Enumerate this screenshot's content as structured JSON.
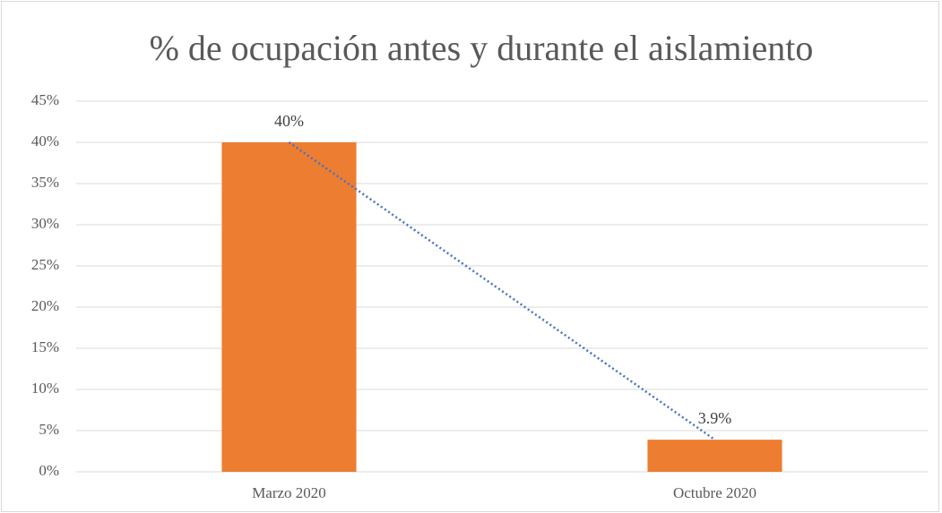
{
  "chart_data": {
    "type": "bar",
    "title": "% de ocupación antes y durante el aislamiento",
    "categories": [
      "Marzo 2020",
      "Octubre 2020"
    ],
    "values": [
      40,
      3.9
    ],
    "value_labels": [
      "40%",
      "3.9%"
    ],
    "color": "#ed7d31",
    "trendline": true,
    "trendline_color": "#4472c4",
    "ylim": [
      0,
      45
    ],
    "yticks": [
      {
        "value": 0,
        "label": "0%"
      },
      {
        "value": 5,
        "label": "5%"
      },
      {
        "value": 10,
        "label": "10%"
      },
      {
        "value": 15,
        "label": "15%"
      },
      {
        "value": 20,
        "label": "20%"
      },
      {
        "value": 25,
        "label": "25%"
      },
      {
        "value": 30,
        "label": "30%"
      },
      {
        "value": 35,
        "label": "35%"
      },
      {
        "value": 40,
        "label": "40%"
      },
      {
        "value": 45,
        "label": "45%"
      }
    ],
    "grid": true
  }
}
